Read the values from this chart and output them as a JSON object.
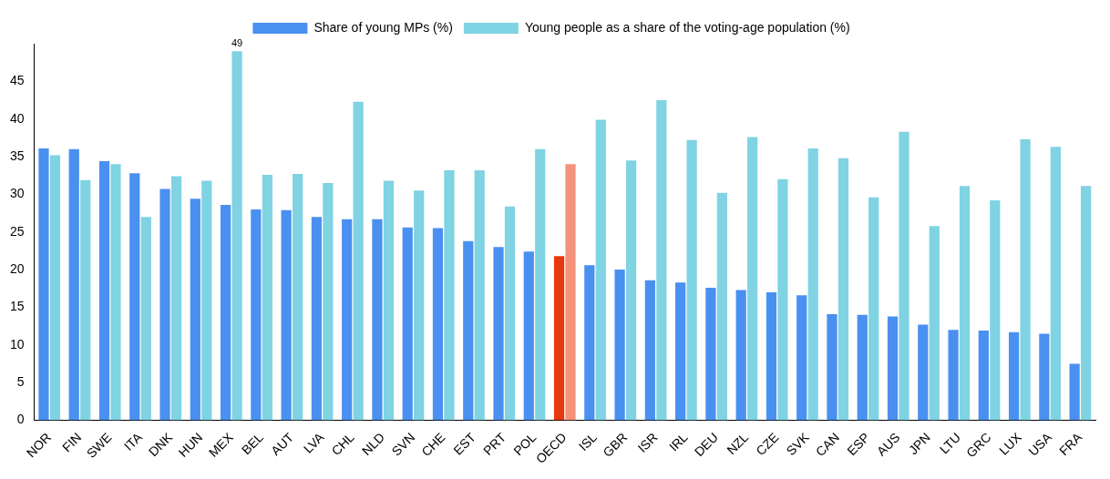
{
  "chart_data": {
    "type": "bar",
    "categories": [
      "NOR",
      "FIN",
      "SWE",
      "ITA",
      "DNK",
      "HUN",
      "MEX",
      "BEL",
      "AUT",
      "LVA",
      "CHL",
      "NLD",
      "SVN",
      "CHE",
      "EST",
      "PRT",
      "POL",
      "OECD",
      "ISL",
      "GBR",
      "ISR",
      "IRL",
      "DEU",
      "NZL",
      "CZE",
      "SVK",
      "CAN",
      "ESP",
      "AUS",
      "JPN",
      "LTU",
      "GRC",
      "LUX",
      "USA",
      "FRA"
    ],
    "series": [
      {
        "name": "Share of young MPs (%)",
        "color": "#4a90f0",
        "colors": [
          "#4a90f0",
          "#4a90f0",
          "#4a90f0",
          "#4a90f0",
          "#4a90f0",
          "#4a90f0",
          "#4a90f0",
          "#4a90f0",
          "#4a90f0",
          "#4a90f0",
          "#4a90f0",
          "#4a90f0",
          "#4a90f0",
          "#4a90f0",
          "#4a90f0",
          "#4a90f0",
          "#4a90f0",
          "#e8380d",
          "#4a90f0",
          "#4a90f0",
          "#4a90f0",
          "#4a90f0",
          "#4a90f0",
          "#4a90f0",
          "#4a90f0",
          "#4a90f0",
          "#4a90f0",
          "#4a90f0",
          "#4a90f0",
          "#4a90f0",
          "#4a90f0",
          "#4a90f0",
          "#4a90f0",
          "#4a90f0",
          "#4a90f0"
        ],
        "values": [
          36.1,
          36.0,
          34.4,
          32.8,
          30.7,
          29.4,
          28.6,
          28.0,
          27.9,
          27.0,
          26.7,
          26.7,
          25.6,
          25.5,
          23.8,
          23.0,
          22.4,
          21.8,
          20.6,
          20.0,
          18.6,
          18.3,
          17.6,
          17.3,
          17.0,
          16.6,
          14.1,
          14.0,
          13.8,
          12.7,
          12.0,
          11.9,
          11.7,
          11.5,
          7.5
        ]
      },
      {
        "name": "Young people as a share of the voting-age population (%)",
        "color": "#7fd3e3",
        "colors": [
          "#7fd3e3",
          "#7fd3e3",
          "#7fd3e3",
          "#7fd3e3",
          "#7fd3e3",
          "#7fd3e3",
          "#7fd3e3",
          "#7fd3e3",
          "#7fd3e3",
          "#7fd3e3",
          "#7fd3e3",
          "#7fd3e3",
          "#7fd3e3",
          "#7fd3e3",
          "#7fd3e3",
          "#7fd3e3",
          "#7fd3e3",
          "#f4937a",
          "#7fd3e3",
          "#7fd3e3",
          "#7fd3e3",
          "#7fd3e3",
          "#7fd3e3",
          "#7fd3e3",
          "#7fd3e3",
          "#7fd3e3",
          "#7fd3e3",
          "#7fd3e3",
          "#7fd3e3",
          "#7fd3e3",
          "#7fd3e3",
          "#7fd3e3",
          "#7fd3e3",
          "#7fd3e3",
          "#7fd3e3"
        ],
        "values": [
          35.2,
          31.9,
          34.0,
          27.0,
          32.4,
          31.8,
          49,
          32.6,
          32.7,
          31.5,
          42.3,
          31.8,
          30.5,
          33.2,
          33.2,
          28.4,
          36.0,
          34.0,
          39.9,
          34.5,
          42.5,
          37.2,
          30.2,
          37.6,
          32.0,
          36.1,
          34.8,
          29.6,
          38.3,
          25.8,
          31.1,
          29.2,
          37.3,
          36.3,
          31.1
        ],
        "value_labels": [
          null,
          null,
          null,
          null,
          null,
          null,
          "49",
          null,
          null,
          null,
          null,
          null,
          null,
          null,
          null,
          null,
          null,
          null,
          null,
          null,
          null,
          null,
          null,
          null,
          null,
          null,
          null,
          null,
          null,
          null,
          null,
          null,
          null,
          null,
          null
        ]
      }
    ],
    "ylim": [
      0,
      50
    ],
    "yticks": [
      0,
      5,
      10,
      15,
      20,
      25,
      30,
      35,
      40,
      45
    ],
    "grid": false,
    "legend": "top"
  }
}
